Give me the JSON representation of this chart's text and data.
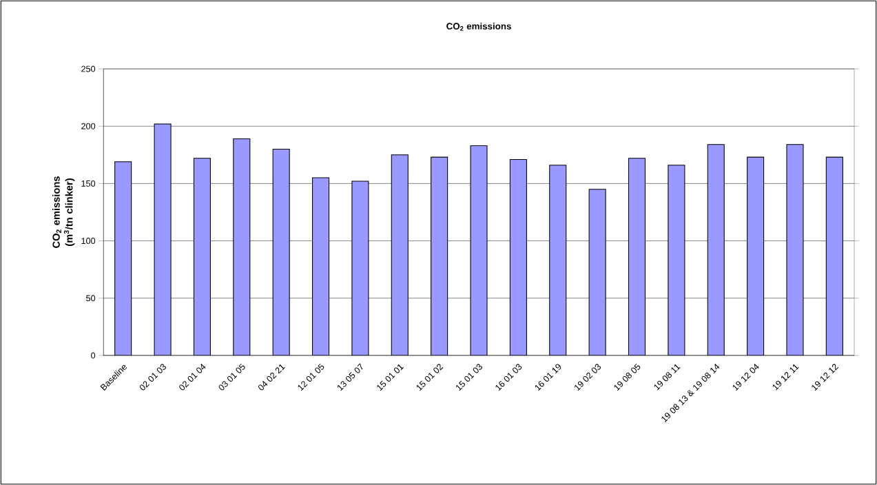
{
  "chart_data": {
    "type": "bar",
    "title": "CO$_{2}$ emissions",
    "ylabel": "CO$_{2}$ emissions (m$^{3}$/tn clinker)",
    "categories": [
      "Baseline",
      "02 01 03",
      "02 01 04",
      "03 01 05",
      "04 02 21",
      "12 01 05",
      "13 05 07",
      "15 01 01",
      "15 01 02",
      "15 01 03",
      "16 01 03",
      "16 01 19",
      "19 02 03",
      "19 08 05",
      "19 08 11",
      "19 08 13 & 19 08 14",
      "19 12 04",
      "19 12 11",
      "19 12 12"
    ],
    "values": [
      169,
      202,
      172,
      189,
      180,
      155,
      152,
      175,
      173,
      183,
      171,
      166,
      145,
      172,
      166,
      184,
      173,
      184,
      173
    ],
    "color": "#9999ff",
    "ylim": [
      0,
      250
    ],
    "yticks": [
      0,
      50,
      100,
      150,
      200,
      250
    ],
    "grid": "y"
  }
}
